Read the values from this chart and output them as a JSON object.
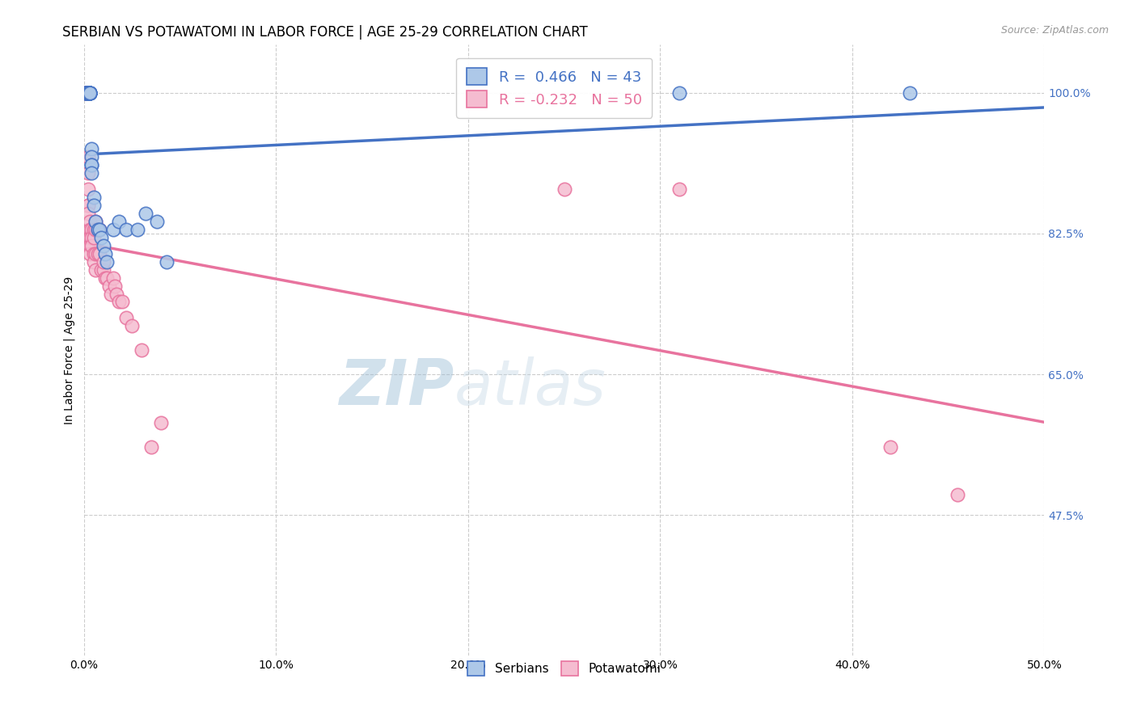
{
  "title": "SERBIAN VS POTAWATOMI IN LABOR FORCE | AGE 25-29 CORRELATION CHART",
  "source": "Source: ZipAtlas.com",
  "ylabel_label": "In Labor Force | Age 25-29",
  "xlim": [
    0.0,
    0.5
  ],
  "ylim": [
    0.3,
    1.06
  ],
  "yticks": [
    0.475,
    0.65,
    0.825,
    1.0
  ],
  "ytick_labels": [
    "47.5%",
    "65.0%",
    "82.5%",
    "100.0%"
  ],
  "xticks": [
    0.0,
    0.1,
    0.2,
    0.3,
    0.4,
    0.5
  ],
  "xtick_labels": [
    "0.0%",
    "10.0%",
    "20.0%",
    "30.0%",
    "40.0%",
    "50.0%"
  ],
  "serbian_R": 0.466,
  "serbian_N": 43,
  "potawatomi_R": -0.232,
  "potawatomi_N": 50,
  "serbian_color": "#adc8e8",
  "potawatomi_color": "#f5bcd0",
  "trend_serbian_color": "#4472c4",
  "trend_potawatomi_color": "#e8739e",
  "legend_label_serbian": "Serbians",
  "legend_label_potawatomi": "Potawatomi",
  "serbian_x": [
    0.001,
    0.001,
    0.001,
    0.001,
    0.002,
    0.002,
    0.002,
    0.002,
    0.002,
    0.002,
    0.002,
    0.003,
    0.003,
    0.003,
    0.003,
    0.003,
    0.003,
    0.003,
    0.003,
    0.003,
    0.004,
    0.004,
    0.004,
    0.004,
    0.004,
    0.005,
    0.005,
    0.006,
    0.007,
    0.008,
    0.009,
    0.01,
    0.011,
    0.012,
    0.015,
    0.018,
    0.022,
    0.028,
    0.032,
    0.038,
    0.043,
    0.31,
    0.43
  ],
  "serbian_y": [
    1.0,
    1.0,
    1.0,
    1.0,
    1.0,
    1.0,
    1.0,
    1.0,
    1.0,
    1.0,
    1.0,
    1.0,
    1.0,
    1.0,
    1.0,
    1.0,
    1.0,
    1.0,
    1.0,
    1.0,
    0.93,
    0.92,
    0.91,
    0.91,
    0.9,
    0.87,
    0.86,
    0.84,
    0.83,
    0.83,
    0.82,
    0.81,
    0.8,
    0.79,
    0.83,
    0.84,
    0.83,
    0.83,
    0.85,
    0.84,
    0.79,
    1.0,
    1.0
  ],
  "potawatomi_x": [
    0.001,
    0.001,
    0.001,
    0.002,
    0.002,
    0.002,
    0.002,
    0.002,
    0.002,
    0.003,
    0.003,
    0.003,
    0.003,
    0.003,
    0.004,
    0.004,
    0.004,
    0.005,
    0.005,
    0.005,
    0.005,
    0.006,
    0.006,
    0.006,
    0.006,
    0.007,
    0.007,
    0.008,
    0.008,
    0.009,
    0.01,
    0.01,
    0.011,
    0.012,
    0.013,
    0.014,
    0.015,
    0.016,
    0.017,
    0.018,
    0.02,
    0.022,
    0.025,
    0.03,
    0.035,
    0.04,
    0.25,
    0.31,
    0.42,
    0.455
  ],
  "potawatomi_y": [
    1.0,
    1.0,
    1.0,
    0.92,
    0.9,
    0.88,
    0.86,
    0.86,
    0.85,
    0.84,
    0.83,
    0.82,
    0.81,
    0.8,
    0.83,
    0.82,
    0.81,
    0.83,
    0.82,
    0.8,
    0.79,
    0.84,
    0.83,
    0.8,
    0.78,
    0.83,
    0.8,
    0.83,
    0.8,
    0.78,
    0.78,
    0.79,
    0.77,
    0.77,
    0.76,
    0.75,
    0.77,
    0.76,
    0.75,
    0.74,
    0.74,
    0.72,
    0.71,
    0.68,
    0.56,
    0.59,
    0.88,
    0.88,
    0.56,
    0.5
  ],
  "watermark_zip": "ZIP",
  "watermark_atlas": "atlas",
  "background_color": "#ffffff",
  "grid_color": "#cccccc",
  "tick_color_right": "#4472c4",
  "title_fontsize": 12,
  "axis_fontsize": 10,
  "legend_fontsize": 13
}
